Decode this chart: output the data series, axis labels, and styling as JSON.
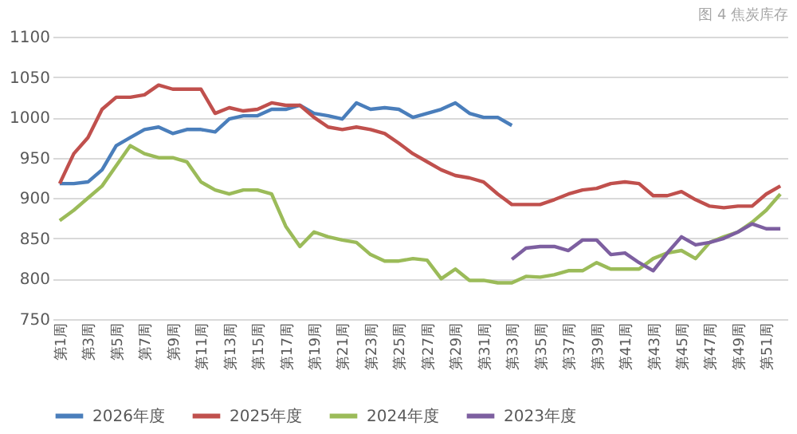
{
  "chart_data": {
    "type": "line",
    "title": "图 4 焦炭库存",
    "categories": [
      "第1周",
      null,
      "第3周",
      null,
      "第5周",
      null,
      "第7周",
      null,
      "第9周",
      null,
      "第11周",
      null,
      "第13周",
      null,
      "第15周",
      null,
      "第17周",
      null,
      "第19周",
      null,
      "第21周",
      null,
      "第23周",
      null,
      "第25周",
      null,
      "第27周",
      null,
      "第29周",
      null,
      "第31周",
      null,
      "第33周",
      null,
      "第35周",
      null,
      "第37周",
      null,
      "第39周",
      null,
      "第41周",
      null,
      "第43周",
      null,
      "第45周",
      null,
      "第47周",
      null,
      "第49周",
      null,
      "第51周",
      null
    ],
    "series": [
      {
        "name": "2026年度",
        "color": "#4a7ebb",
        "values": [
          918,
          918,
          920,
          935,
          965,
          975,
          985,
          988,
          980,
          985,
          985,
          982,
          998,
          1002,
          1002,
          1010,
          1010,
          1015,
          1005,
          1002,
          998,
          1018,
          1010,
          1012,
          1010,
          1000,
          1005,
          1010,
          1018,
          1005,
          1000,
          1000,
          990,
          null,
          null,
          null,
          null,
          null,
          null,
          null,
          null,
          null,
          null,
          null,
          null,
          null,
          null,
          null,
          null,
          null,
          null,
          null
        ]
      },
      {
        "name": "2025年度",
        "color": "#c0504d",
        "values": [
          918,
          955,
          975,
          1010,
          1025,
          1025,
          1028,
          1040,
          1035,
          1035,
          1035,
          1005,
          1012,
          1008,
          1010,
          1018,
          1015,
          1015,
          1000,
          988,
          985,
          988,
          985,
          980,
          968,
          955,
          945,
          935,
          928,
          925,
          920,
          905,
          892,
          892,
          892,
          898,
          905,
          910,
          912,
          918,
          920,
          918,
          903,
          903,
          908,
          898,
          890,
          888,
          890,
          890,
          905,
          915
        ]
      },
      {
        "name": "2024年度",
        "color": "#9bbb59",
        "values": [
          872,
          885,
          900,
          915,
          940,
          965,
          955,
          950,
          950,
          945,
          920,
          910,
          905,
          910,
          910,
          905,
          865,
          840,
          858,
          852,
          848,
          845,
          830,
          822,
          822,
          825,
          823,
          800,
          812,
          798,
          798,
          795,
          795,
          803,
          802,
          805,
          810,
          810,
          820,
          812,
          812,
          812,
          825,
          832,
          835,
          825,
          845,
          852,
          858,
          870,
          885,
          905
        ]
      },
      {
        "name": "2023年度",
        "color": "#7d5fa0",
        "values": [
          null,
          null,
          null,
          null,
          null,
          null,
          null,
          null,
          null,
          null,
          null,
          null,
          null,
          null,
          null,
          null,
          null,
          null,
          null,
          null,
          null,
          null,
          null,
          null,
          null,
          null,
          null,
          null,
          null,
          null,
          null,
          null,
          824,
          838,
          840,
          840,
          835,
          848,
          848,
          830,
          832,
          820,
          810,
          832,
          852,
          842,
          845,
          850,
          858,
          868,
          862,
          862
        ]
      }
    ],
    "ylim": [
      750,
      1100
    ],
    "yticks": [
      750,
      800,
      850,
      900,
      950,
      1000,
      1050,
      1100
    ],
    "grid": "y",
    "legend": "bottom",
    "marker": "none",
    "line_style": "solid"
  }
}
